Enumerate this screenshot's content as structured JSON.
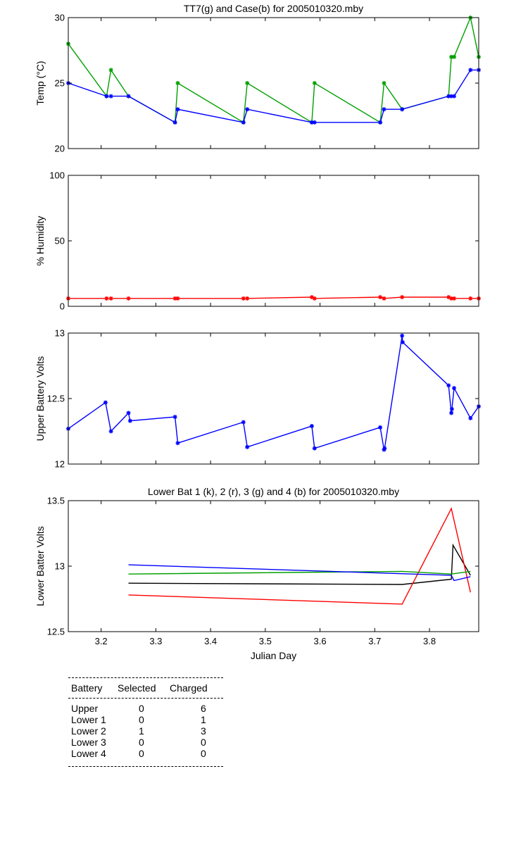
{
  "chart_data": [
    {
      "type": "line",
      "title": "TT7(g) and Case(b) for 2005010320.mby",
      "xlabel": "",
      "ylabel": "Temp  (°C)",
      "xlim": [
        3.14,
        3.89
      ],
      "ylim": [
        20,
        30
      ],
      "yticks": [
        20,
        25,
        30
      ],
      "xticks": [
        3.2,
        3.3,
        3.4,
        3.5,
        3.6,
        3.7,
        3.8
      ],
      "show_xtick_labels": false,
      "grid": false,
      "series": [
        {
          "color": "#00a000",
          "marker": "*",
          "x": [
            3.14,
            3.21,
            3.218,
            3.25,
            3.335,
            3.34,
            3.46,
            3.467,
            3.585,
            3.59,
            3.71,
            3.717,
            3.75,
            3.835,
            3.84,
            3.845,
            3.875,
            3.89
          ],
          "y": [
            28,
            24,
            26,
            24,
            22,
            25,
            22,
            25,
            22,
            25,
            22,
            25,
            23,
            24,
            27,
            27,
            30,
            27
          ]
        },
        {
          "color": "#0000ff",
          "marker": "*",
          "x": [
            3.14,
            3.21,
            3.218,
            3.25,
            3.335,
            3.34,
            3.46,
            3.467,
            3.585,
            3.59,
            3.71,
            3.717,
            3.75,
            3.835,
            3.84,
            3.845,
            3.875,
            3.89
          ],
          "y": [
            25,
            24,
            24,
            24,
            22,
            23,
            22,
            23,
            22,
            22,
            22,
            23,
            23,
            24,
            24,
            24,
            26,
            26
          ]
        }
      ]
    },
    {
      "type": "line",
      "title": "",
      "xlabel": "",
      "ylabel": "% Humidity",
      "xlim": [
        3.14,
        3.89
      ],
      "ylim": [
        0,
        100
      ],
      "yticks": [
        0,
        50,
        100
      ],
      "xticks": [
        3.2,
        3.3,
        3.4,
        3.5,
        3.6,
        3.7,
        3.8
      ],
      "show_xtick_labels": false,
      "grid": false,
      "series": [
        {
          "color": "#ff0000",
          "marker": "*",
          "x": [
            3.14,
            3.21,
            3.218,
            3.25,
            3.335,
            3.34,
            3.46,
            3.467,
            3.585,
            3.59,
            3.71,
            3.717,
            3.75,
            3.835,
            3.84,
            3.845,
            3.875,
            3.89
          ],
          "y": [
            6,
            6,
            6,
            6,
            6,
            6,
            6,
            6,
            7,
            6,
            7,
            6,
            7,
            7,
            6,
            6,
            6,
            6
          ]
        }
      ]
    },
    {
      "type": "line",
      "title": "",
      "xlabel": "",
      "ylabel": "Upper Battery Volts",
      "xlim": [
        3.14,
        3.89
      ],
      "ylim": [
        12,
        13
      ],
      "yticks": [
        12,
        12.5,
        13
      ],
      "xticks": [
        3.2,
        3.3,
        3.4,
        3.5,
        3.6,
        3.7,
        3.8
      ],
      "show_xtick_labels": false,
      "grid": false,
      "series": [
        {
          "color": "#0000ff",
          "marker": "*",
          "x": [
            3.14,
            3.208,
            3.218,
            3.25,
            3.253,
            3.335,
            3.34,
            3.46,
            3.467,
            3.585,
            3.59,
            3.71,
            3.717,
            3.718,
            3.75,
            3.751,
            3.835,
            3.84,
            3.841,
            3.845,
            3.875,
            3.89
          ],
          "y": [
            12.27,
            12.47,
            12.25,
            12.39,
            12.33,
            12.36,
            12.16,
            12.32,
            12.13,
            12.29,
            12.12,
            12.28,
            12.11,
            12.12,
            12.98,
            12.93,
            12.6,
            12.39,
            12.42,
            12.58,
            12.35,
            12.44
          ]
        }
      ]
    },
    {
      "type": "line",
      "title": "Lower Bat 1 (k), 2 (r), 3 (g) and 4 (b) for 2005010320.mby",
      "xlabel": "Julian Day",
      "ylabel": "Lower Batter Volts",
      "xlim": [
        3.14,
        3.89
      ],
      "ylim": [
        12.5,
        13.5
      ],
      "yticks": [
        12.5,
        13,
        13.5
      ],
      "xticks": [
        3.2,
        3.3,
        3.4,
        3.5,
        3.6,
        3.7,
        3.8
      ],
      "show_xtick_labels": true,
      "grid": false,
      "series": [
        {
          "color": "#000000",
          "marker": "",
          "x": [
            3.25,
            3.75,
            3.84,
            3.843,
            3.875
          ],
          "y": [
            12.87,
            12.86,
            12.9,
            13.16,
            12.93
          ]
        },
        {
          "color": "#ff0000",
          "marker": "",
          "x": [
            3.25,
            3.75,
            3.84,
            3.875
          ],
          "y": [
            12.78,
            12.71,
            13.44,
            12.8
          ]
        },
        {
          "color": "#00a000",
          "marker": "",
          "x": [
            3.25,
            3.75,
            3.84,
            3.875
          ],
          "y": [
            12.94,
            12.96,
            12.94,
            12.96
          ]
        },
        {
          "color": "#0000ff",
          "marker": "",
          "x": [
            3.25,
            3.84,
            3.845,
            3.875
          ],
          "y": [
            13.01,
            12.93,
            12.89,
            12.92
          ]
        }
      ]
    }
  ],
  "table": {
    "headers": [
      "Battery",
      "Selected",
      "Charged"
    ],
    "rows": [
      [
        "Upper",
        "0",
        "6"
      ],
      [
        "Lower 1",
        "0",
        "1"
      ],
      [
        "Lower 2",
        "1",
        "3"
      ],
      [
        "Lower 3",
        "0",
        "0"
      ],
      [
        "Lower 4",
        "0",
        "0"
      ]
    ]
  }
}
